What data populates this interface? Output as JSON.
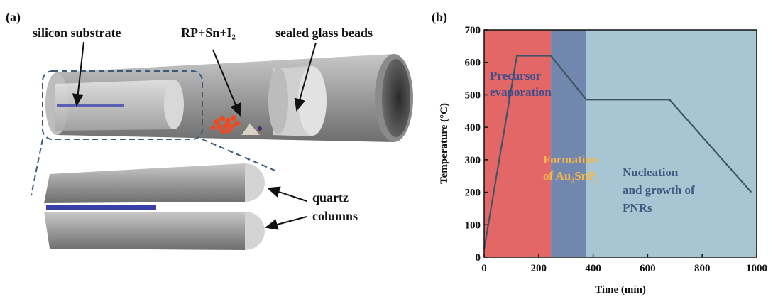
{
  "panel_a": {
    "label": "(a)",
    "callouts": [
      "silicon substrate",
      "RP+Sn+I₂",
      "sealed glass beads"
    ],
    "quartz_label": [
      "quartz",
      "columns"
    ]
  },
  "chart_data": {
    "type": "line",
    "panel_label": "(b)",
    "x_label": "Time (min)",
    "y_label": "Temperature (°C)",
    "x": [
      0,
      120,
      245,
      375,
      680,
      980
    ],
    "values": [
      25,
      620,
      620,
      485,
      485,
      200
    ],
    "color": "#3f5566",
    "regions": [
      {
        "label_lines": [
          "Precursor",
          "evaporation"
        ],
        "start": 0,
        "end": 245,
        "color": "#e36767",
        "text_color": "#3b4f8c"
      },
      {
        "label_lines": [
          "Formation",
          "of Au₃SnP₇"
        ],
        "start": 245,
        "end": 375,
        "color": "#7187ad",
        "text_color": "#f6b64a"
      },
      {
        "label_lines": [
          "Nucleation",
          "and growth of",
          "PNRs"
        ],
        "start": 375,
        "end": 1000,
        "color": "#a8c5d3",
        "text_color": "#3d5a80"
      }
    ],
    "xlim": [
      0,
      1000
    ],
    "ylim": [
      0,
      700
    ],
    "xticks": [
      0,
      200,
      400,
      600,
      800,
      1000
    ],
    "yticks": [
      0,
      100,
      200,
      300,
      400,
      500,
      600,
      700
    ]
  }
}
